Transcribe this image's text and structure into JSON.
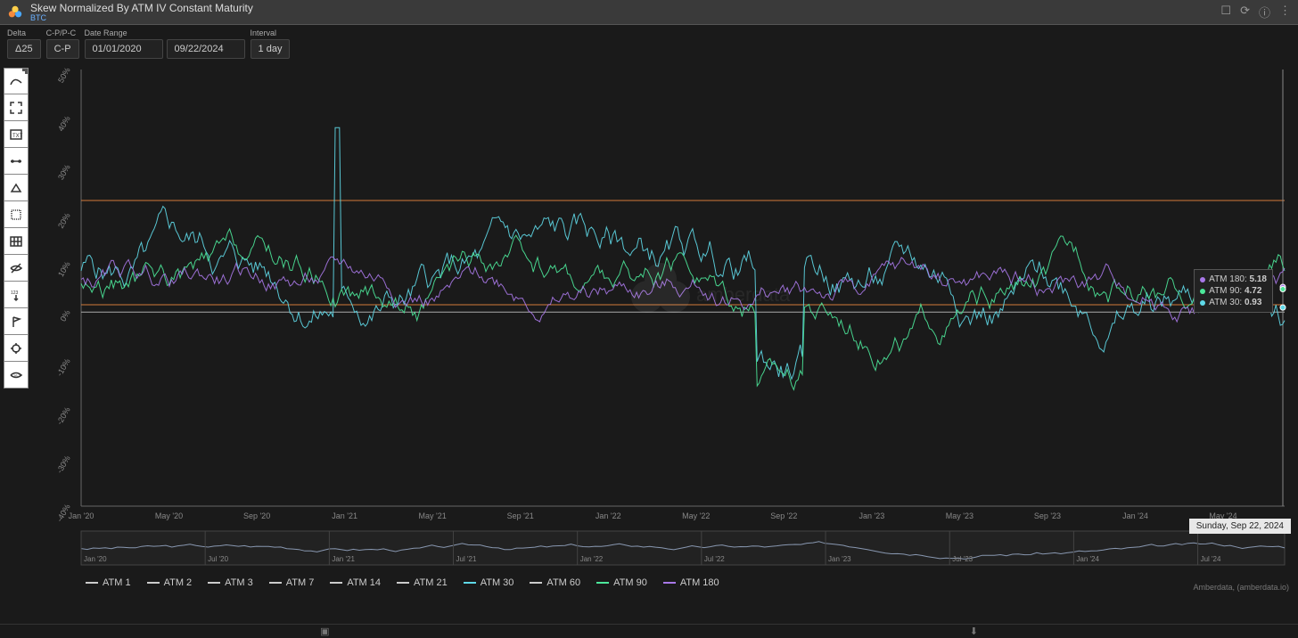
{
  "header": {
    "title": "Skew Normalized By ATM IV Constant Maturity",
    "subtitle": "BTC"
  },
  "controls": {
    "delta": {
      "label": "Delta",
      "value": "Δ25"
    },
    "cppc": {
      "label": "C-P/P-C",
      "value": "C-P"
    },
    "date_range": {
      "label": "Date Range",
      "start": "01/01/2020",
      "end": "09/22/2024"
    },
    "interval": {
      "label": "Interval",
      "value": "1 day"
    }
  },
  "chart": {
    "type": "line",
    "background": "#1a1a1a",
    "grid_color": "#333",
    "axis_color": "#666",
    "text_color": "#888",
    "y_axis": {
      "min": -40,
      "max": 50,
      "step": 10,
      "suffix": "%"
    },
    "x_axis": {
      "ticks": [
        "Jan '20",
        "May '20",
        "Sep '20",
        "Jan '21",
        "May '21",
        "Sep '21",
        "Jan '22",
        "May '22",
        "Sep '22",
        "Jan '23",
        "May '23",
        "Sep '23",
        "Jan '24",
        "May '24"
      ]
    },
    "reference_lines": [
      {
        "value": 23,
        "color": "#d47a3a"
      },
      {
        "value": 1.5,
        "color": "#d47a3a"
      },
      {
        "value": 0,
        "color": "#aaa"
      }
    ],
    "series": [
      {
        "key": "atm30",
        "label": "ATM 30",
        "color": "#5fd9e8",
        "width": 1
      },
      {
        "key": "atm90",
        "label": "ATM 90",
        "color": "#4ce89a",
        "width": 1
      },
      {
        "key": "atm180",
        "label": "ATM 180",
        "color": "#a878e8",
        "width": 1
      }
    ],
    "legend_full": [
      {
        "label": "ATM 1",
        "color": "#ccc"
      },
      {
        "label": "ATM 2",
        "color": "#ccc"
      },
      {
        "label": "ATM 3",
        "color": "#ccc"
      },
      {
        "label": "ATM 7",
        "color": "#ccc"
      },
      {
        "label": "ATM 14",
        "color": "#ccc"
      },
      {
        "label": "ATM 21",
        "color": "#ccc"
      },
      {
        "label": "ATM 30",
        "color": "#5fd9e8"
      },
      {
        "label": "ATM 60",
        "color": "#ccc"
      },
      {
        "label": "ATM 90",
        "color": "#4ce89a"
      },
      {
        "label": "ATM 180",
        "color": "#a878e8"
      }
    ],
    "hover_date": "Sunday, Sep 22, 2024",
    "tooltip": [
      {
        "label": "ATM 180",
        "value": "5.18",
        "color": "#a878e8"
      },
      {
        "label": "ATM 90",
        "value": "4.72",
        "color": "#4ce89a"
      },
      {
        "label": "ATM 30",
        "value": "0.93",
        "color": "#5fd9e8"
      }
    ],
    "brush_ticks": [
      "Jan '20",
      "Jul '20",
      "Jan '21",
      "Jul '21",
      "Jan '22",
      "Jul '22",
      "Jan '23",
      "Jul '23",
      "Jan '24",
      "Jul '24"
    ]
  },
  "footer": {
    "attribution": "Amberdata, (amberdata.io)"
  }
}
